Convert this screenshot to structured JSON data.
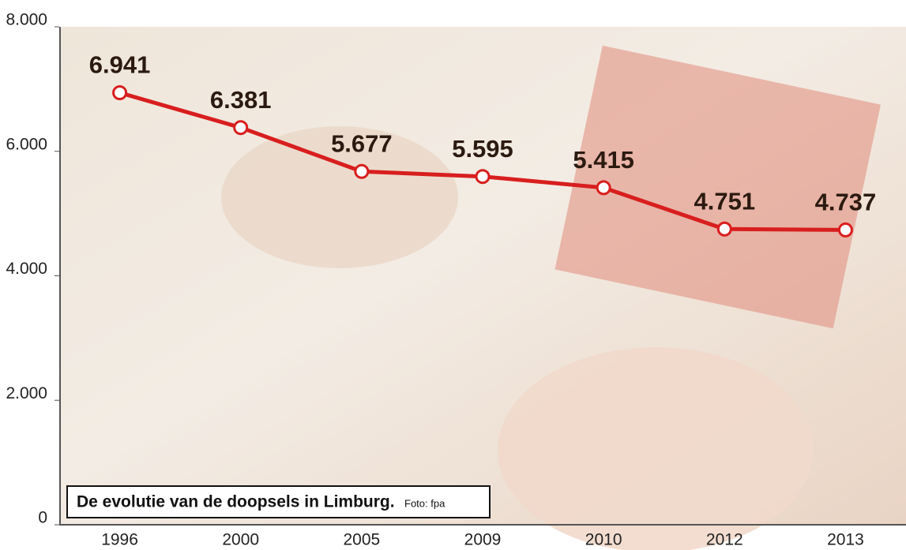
{
  "chart_data": {
    "type": "line",
    "categories": [
      "1996",
      "2000",
      "2005",
      "2009",
      "2010",
      "2012",
      "2013"
    ],
    "values": [
      6941,
      6381,
      5677,
      5595,
      5415,
      4751,
      4737
    ],
    "value_labels": [
      "6.941",
      "6.381",
      "5.677",
      "5.595",
      "5.415",
      "4.751",
      "4.737"
    ],
    "color": "#d81e1e",
    "ylim": [
      0,
      8000
    ],
    "yticks": [
      0,
      {
        "value": 2000,
        "label": "2.000"
      },
      {
        "value": 4000,
        "label": "4.000"
      },
      {
        "value": 6000,
        "label": "6.000"
      },
      {
        "value": 8000,
        "label": "8.000"
      }
    ],
    "caption": "De evolutie van de doopsels in Limburg.",
    "credit": "Foto: fpa"
  }
}
